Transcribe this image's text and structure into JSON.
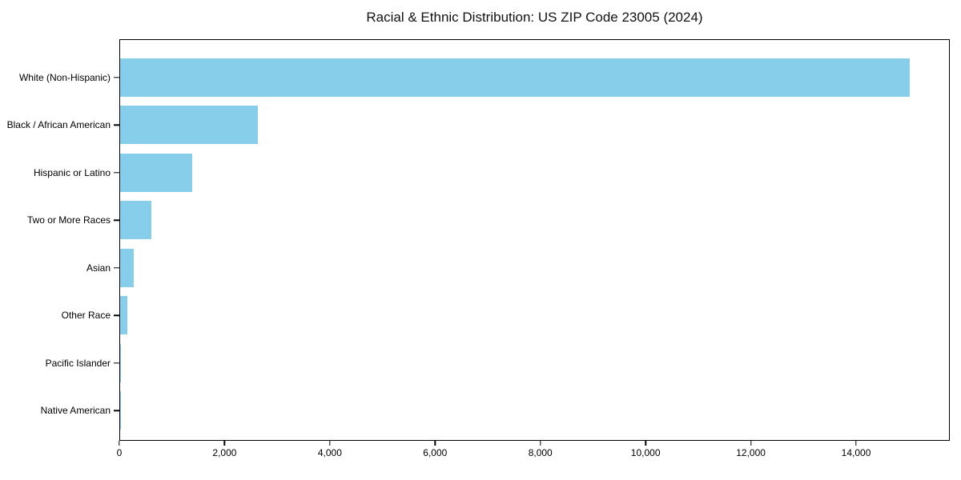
{
  "chart_data": {
    "type": "bar",
    "orientation": "horizontal",
    "title": "Racial & Ethnic Distribution: US ZIP Code 23005 (2024)",
    "categories": [
      "White (Non-Hispanic)",
      "Black / African American",
      "Hispanic or Latino",
      "Two or More Races",
      "Asian",
      "Other Race",
      "Pacific Islander",
      "Native American"
    ],
    "values": [
      15030,
      2615,
      1370,
      590,
      260,
      130,
      5,
      2
    ],
    "xlabel": "",
    "ylabel": "",
    "xlim": [
      0,
      15780
    ],
    "xticks": {
      "values": [
        0,
        2000,
        4000,
        6000,
        8000,
        10000,
        12000,
        14000
      ],
      "labels": [
        "0",
        "2,000",
        "4,000",
        "6,000",
        "8,000",
        "10,000",
        "12,000",
        "14,000"
      ]
    },
    "bar_color": "#87CEEB",
    "background_color": "#FFFFFF",
    "grid": false,
    "legend": null
  }
}
